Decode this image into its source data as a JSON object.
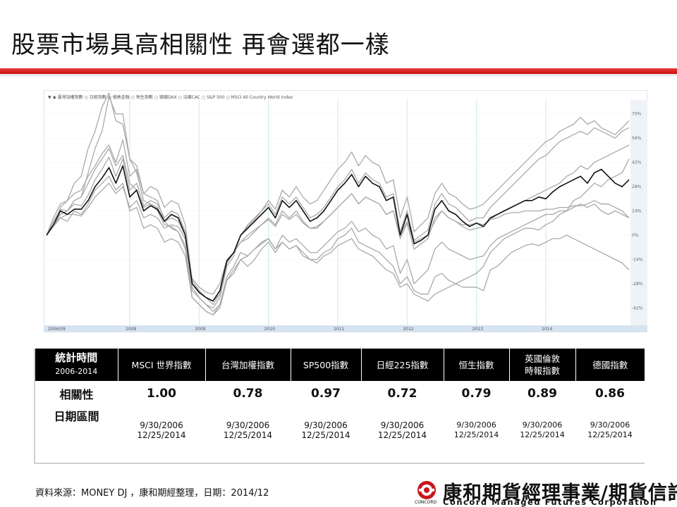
{
  "page": {
    "title": "股票市場具高相關性 再會選都一樣"
  },
  "chart_data": {
    "type": "line",
    "legend": [
      "臺灣加權指數",
      "日經指數",
      "倫敦金融",
      "恒生指數",
      "德國DAX",
      "法國CAC",
      "S&P 500",
      "MSCI All Country World Index"
    ],
    "x_ticks": [
      "2006/09",
      "2008",
      "2009",
      "2010",
      "2011",
      "2012",
      "2013",
      "2014"
    ],
    "y_ticks": [
      "70%",
      "56%",
      "42%",
      "28%",
      "14%",
      "0%",
      "-14%",
      "-28%",
      "-42%"
    ],
    "ylim": [
      -52,
      78
    ],
    "highlight_series": "MSCI All Country World Index",
    "colors": {
      "highlight": "#111111",
      "others": "#a9a9a9",
      "grid": "#cde9e9",
      "axis_bar": "#d6e3f0"
    },
    "series": [
      {
        "name": "MSCI All Country World Index",
        "values": [
          0,
          6,
          14,
          12,
          15,
          15,
          20,
          28,
          33,
          39,
          30,
          40,
          22,
          26,
          14,
          17,
          15,
          8,
          12,
          10,
          0,
          -28,
          -33,
          -36,
          -38,
          -32,
          -15,
          -10,
          0,
          4,
          8,
          12,
          16,
          10,
          20,
          16,
          20,
          14,
          8,
          10,
          14,
          20,
          26,
          30,
          35,
          28,
          34,
          30,
          28,
          20,
          22,
          0,
          12,
          -5,
          -3,
          0,
          15,
          20,
          14,
          12,
          8,
          5,
          7,
          5,
          10,
          12,
          14,
          16,
          18,
          20,
          20,
          22,
          21,
          25,
          28,
          30,
          32,
          34,
          30,
          36,
          38,
          34,
          30,
          28,
          32
        ]
      },
      {
        "name": "S&P 500",
        "values": [
          0,
          8,
          15,
          14,
          18,
          17,
          23,
          32,
          38,
          45,
          34,
          44,
          26,
          30,
          17,
          20,
          18,
          10,
          14,
          12,
          2,
          -30,
          -36,
          -40,
          -42,
          -36,
          -18,
          -12,
          0,
          5,
          9,
          14,
          18,
          12,
          22,
          18,
          22,
          16,
          10,
          12,
          16,
          22,
          28,
          32,
          38,
          30,
          36,
          32,
          30,
          22,
          24,
          2,
          14,
          -3,
          0,
          3,
          18,
          24,
          18,
          16,
          12,
          8,
          10,
          10,
          16,
          20,
          24,
          28,
          32,
          36,
          40,
          44,
          46,
          50,
          54,
          56,
          58,
          60,
          58,
          62,
          60,
          58,
          56,
          60,
          62
        ]
      },
      {
        "name": "倫敦金融",
        "values": [
          0,
          5,
          10,
          12,
          12,
          11,
          16,
          22,
          26,
          30,
          24,
          28,
          16,
          20,
          10,
          12,
          10,
          4,
          6,
          5,
          -2,
          -25,
          -30,
          -33,
          -34,
          -28,
          -14,
          -10,
          -4,
          0,
          3,
          6,
          9,
          5,
          12,
          9,
          12,
          7,
          4,
          5,
          8,
          12,
          16,
          20,
          24,
          18,
          22,
          20,
          18,
          12,
          14,
          -2,
          7,
          -8,
          -5,
          -2,
          10,
          14,
          10,
          8,
          5,
          3,
          4,
          5,
          9,
          12,
          14,
          16,
          18,
          20,
          22,
          24,
          26,
          28,
          30,
          34,
          36,
          40,
          38,
          42,
          44,
          46,
          48,
          50,
          52
        ]
      },
      {
        "name": "德國DAX",
        "values": [
          0,
          10,
          18,
          20,
          24,
          26,
          34,
          40,
          47,
          52,
          42,
          55,
          34,
          38,
          24,
          28,
          26,
          16,
          20,
          18,
          6,
          -26,
          -32,
          -36,
          -40,
          -34,
          -16,
          -10,
          0,
          6,
          10,
          14,
          20,
          15,
          26,
          22,
          28,
          22,
          18,
          20,
          26,
          32,
          38,
          42,
          48,
          40,
          46,
          42,
          40,
          30,
          32,
          10,
          22,
          2,
          6,
          10,
          24,
          30,
          24,
          22,
          18,
          15,
          16,
          18,
          22,
          26,
          30,
          34,
          38,
          42,
          46,
          50,
          54,
          56,
          60,
          62,
          64,
          68,
          64,
          66,
          62,
          60,
          58,
          62,
          66
        ]
      },
      {
        "name": "日經指數",
        "values": [
          0,
          5,
          12,
          14,
          20,
          22,
          36,
          50,
          60,
          80,
          70,
          70,
          44,
          36,
          20,
          18,
          14,
          6,
          5,
          2,
          -6,
          -32,
          -36,
          -40,
          -44,
          -40,
          -24,
          -18,
          -10,
          -12,
          -8,
          -5,
          -2,
          -8,
          -4,
          -8,
          -6,
          -10,
          -14,
          -16,
          -12,
          -10,
          -6,
          -4,
          -2,
          -8,
          -10,
          -12,
          -16,
          -20,
          -22,
          -30,
          -28,
          -34,
          -36,
          -38,
          -34,
          -32,
          -30,
          -28,
          -26,
          -24,
          -22,
          -18,
          -10,
          -6,
          -2,
          0,
          2,
          4,
          4,
          3,
          6,
          8,
          12,
          14,
          20,
          22,
          26,
          30,
          28,
          32,
          34,
          36,
          44
        ]
      },
      {
        "name": "恒生指數",
        "values": [
          0,
          6,
          16,
          20,
          30,
          34,
          50,
          60,
          74,
          82,
          66,
          64,
          44,
          40,
          24,
          22,
          20,
          8,
          4,
          2,
          -8,
          -36,
          -40,
          -44,
          -46,
          -42,
          -26,
          -20,
          -14,
          -18,
          -14,
          -8,
          -4,
          -10,
          -4,
          -8,
          -6,
          -12,
          -14,
          -14,
          -10,
          -8,
          -2,
          0,
          4,
          -4,
          -6,
          -8,
          -10,
          -14,
          -18,
          -28,
          -24,
          -32,
          -34,
          -34,
          -24,
          -22,
          -26,
          -28,
          -30,
          -30,
          -30,
          -32,
          -20,
          -18,
          -14,
          -10,
          -8,
          -6,
          -5,
          -6,
          -4,
          -2,
          -2,
          0,
          -2,
          -4,
          -6,
          -8,
          -10,
          -12,
          -14,
          -16,
          -20
        ]
      },
      {
        "name": "臺灣加權指數",
        "values": [
          0,
          5,
          12,
          14,
          20,
          22,
          30,
          38,
          44,
          50,
          40,
          46,
          30,
          26,
          16,
          18,
          16,
          8,
          10,
          8,
          0,
          -28,
          -32,
          -36,
          -38,
          -34,
          -16,
          -10,
          -4,
          -2,
          2,
          6,
          10,
          6,
          14,
          10,
          14,
          8,
          4,
          4,
          8,
          12,
          16,
          20,
          24,
          18,
          22,
          20,
          18,
          12,
          14,
          0,
          8,
          -4,
          -2,
          0,
          8,
          14,
          10,
          8,
          6,
          6,
          7,
          6,
          9,
          10,
          12,
          13,
          13,
          14,
          14,
          14,
          15,
          15,
          16,
          16,
          17,
          17,
          18,
          20,
          18,
          18,
          16,
          14,
          10
        ]
      },
      {
        "name": "法國CAC",
        "values": [
          0,
          6,
          10,
          8,
          14,
          12,
          18,
          26,
          30,
          34,
          26,
          30,
          14,
          16,
          4,
          6,
          4,
          -4,
          -2,
          -4,
          -12,
          -36,
          -40,
          -44,
          -46,
          -40,
          -26,
          -22,
          -14,
          -12,
          -8,
          -4,
          -2,
          -8,
          0,
          -4,
          -2,
          -6,
          -10,
          -10,
          -6,
          -2,
          2,
          4,
          8,
          2,
          4,
          0,
          -2,
          -8,
          -6,
          -22,
          -14,
          -28,
          -24,
          -20,
          -8,
          -4,
          -8,
          -10,
          -12,
          -14,
          -13,
          -12,
          -6,
          -2,
          0,
          2,
          4,
          6,
          8,
          10,
          12,
          12,
          14,
          14,
          16,
          18,
          16,
          18,
          14,
          12,
          14,
          12,
          10
        ]
      }
    ]
  },
  "table": {
    "row_header": {
      "main": "統計時間",
      "sub": "2006-2014"
    },
    "columns": [
      {
        "label_lines": [
          "MSCI 世界指數"
        ],
        "corr": "1.00",
        "date_start": "9/30/2006",
        "date_end": "12/25/2014"
      },
      {
        "label_lines": [
          "台灣加權指數"
        ],
        "corr": "0.78",
        "date_start": "9/30/2006",
        "date_end": "12/25/2014"
      },
      {
        "label_lines": [
          "SP500指數"
        ],
        "corr": "0.97",
        "date_start": "9/30/2006",
        "date_end": "12/25/2014"
      },
      {
        "label_lines": [
          "日經225指數"
        ],
        "corr": "0.72",
        "date_start": "9/30/2006",
        "date_end": "12/25/2014"
      },
      {
        "label_lines": [
          "恒生指數"
        ],
        "corr": "0.79",
        "date_start": "9/30/2006",
        "date_end": "12/25/2014"
      },
      {
        "label_lines": [
          "英國倫敦",
          "時報指數"
        ],
        "corr": "0.89",
        "date_start": "9/30/2006",
        "date_end": "12/25/2014"
      },
      {
        "label_lines": [
          "德國指數"
        ],
        "corr": "0.86",
        "date_start": "9/30/2006",
        "date_end": "12/25/2014"
      }
    ],
    "corr_label": "相關性",
    "date_label": "日期區間"
  },
  "footer": {
    "source": "資料來源：MONEY DJ ，康和期經整理，日期：2014/12",
    "logo_cn": "康和期貨經理事業/期貨信託",
    "logo_en": "Concord Managed Futures Corporation",
    "logo_sub": "CONCORD"
  }
}
